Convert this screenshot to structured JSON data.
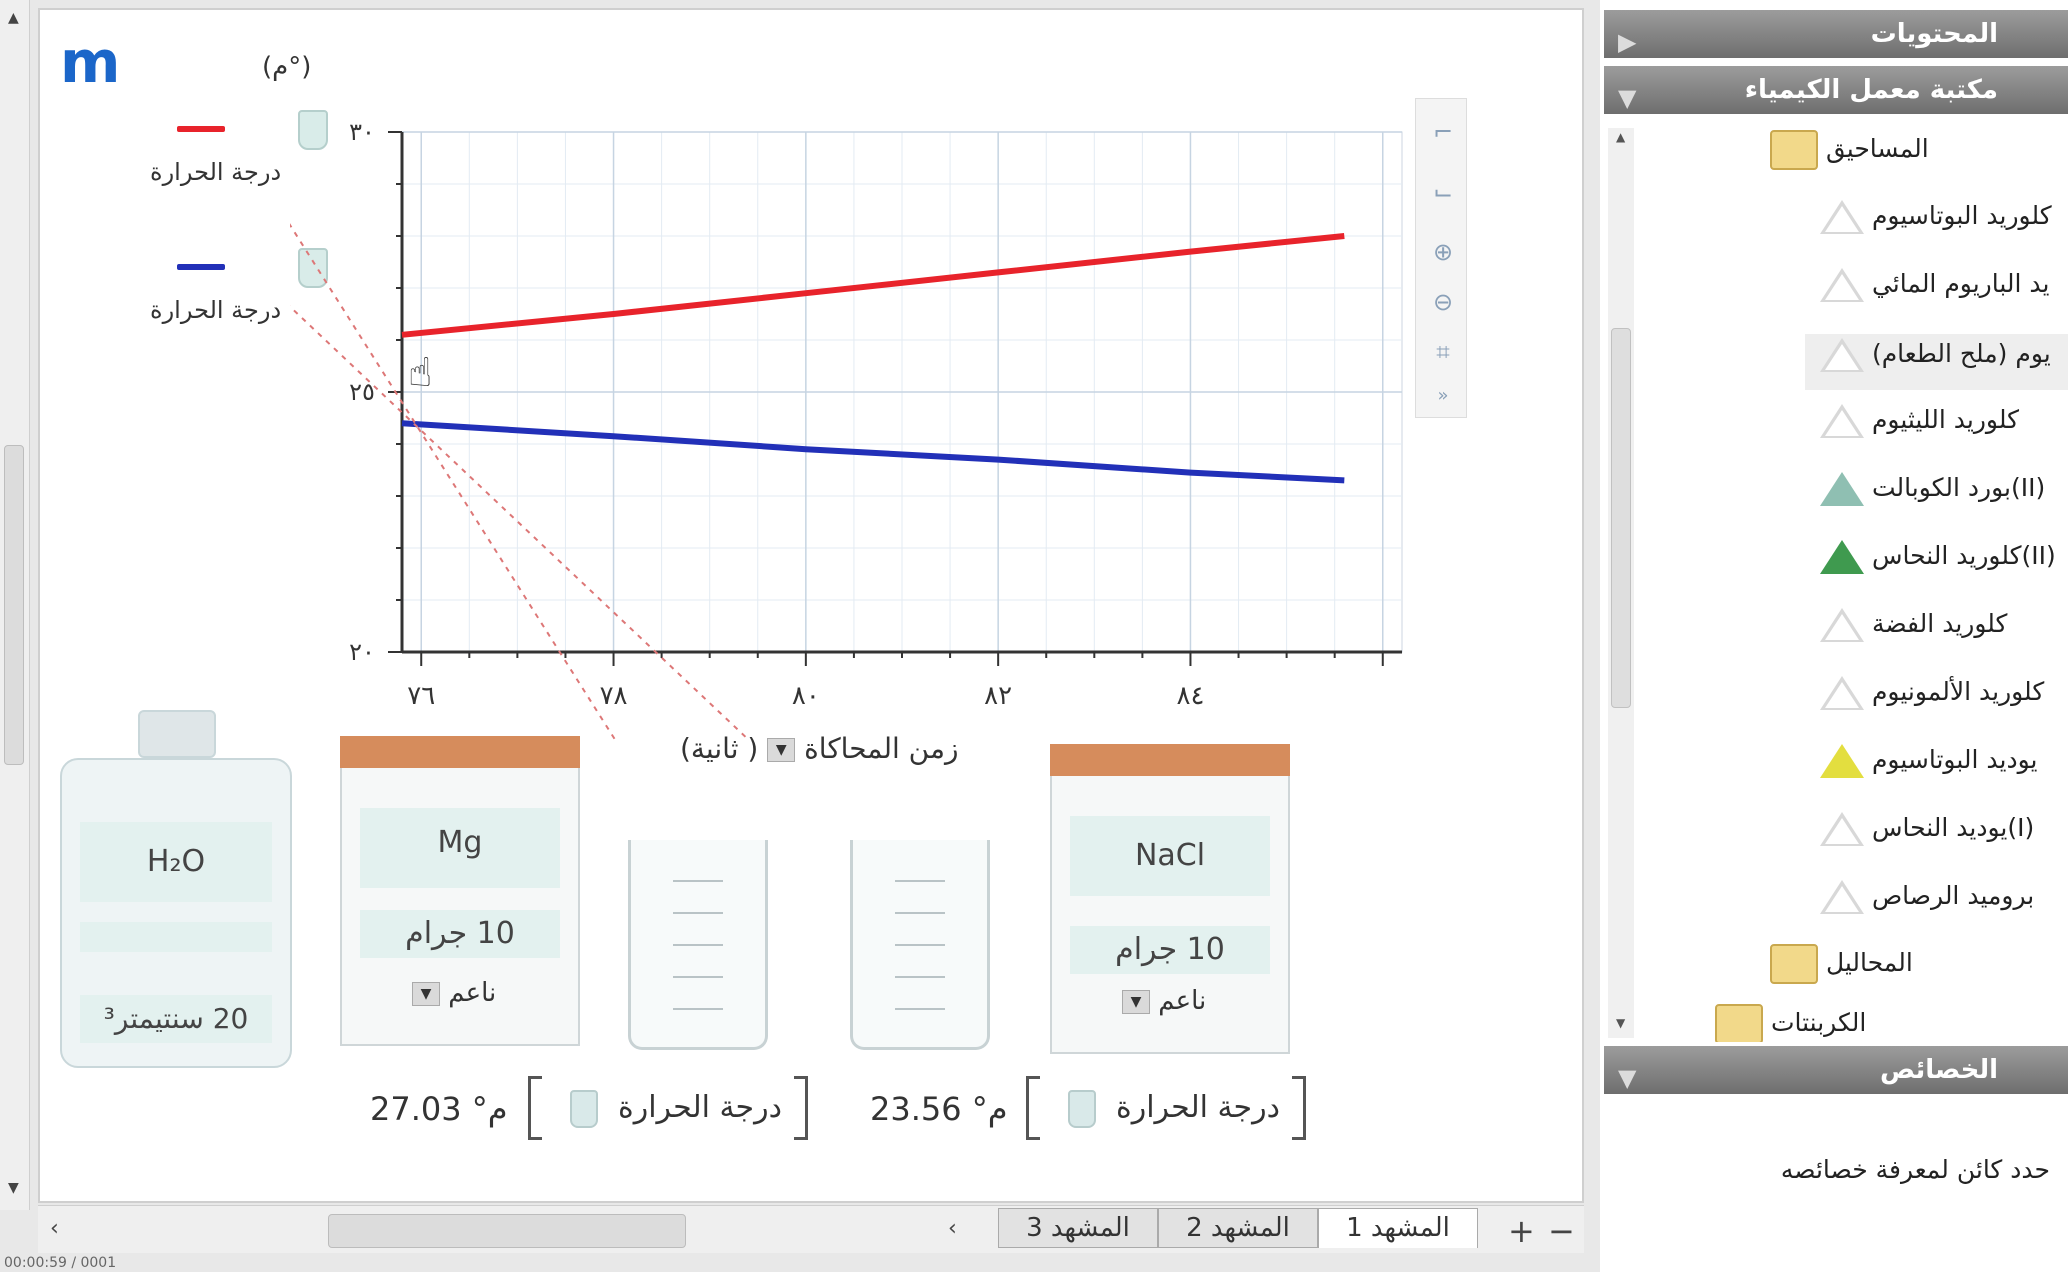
{
  "app": {
    "logo": "m"
  },
  "chart": {
    "unit_label": "(°م)"
  },
  "legend": [
    {
      "label": "درجة الحرارة",
      "color": "#e8232b",
      "probe_icon": "beaker-probe-icon"
    },
    {
      "label": "درجة الحرارة",
      "color": "#2230b8",
      "probe_icon": "beaker-probe-icon"
    }
  ],
  "chart_data": {
    "type": "line",
    "xlabel": "زمن المحاكاة",
    "x_unit": "( ثانية)",
    "xlim": [
      75.8,
      86.2
    ],
    "ylim": [
      20,
      30
    ],
    "x_ticks": [
      "٧٦",
      "٧٨",
      "٨٠",
      "٨٢",
      "٨٤"
    ],
    "y_ticks": [
      "٢٠",
      "٢٥",
      "٣٠"
    ],
    "series": [
      {
        "color": "#e8232b",
        "x": [
          75.8,
          78,
          80,
          82,
          84,
          85.6
        ],
        "y": [
          26.1,
          26.5,
          26.9,
          27.3,
          27.7,
          28.0
        ]
      },
      {
        "color": "#2230b8",
        "x": [
          75.8,
          78,
          80,
          82,
          84,
          85.6
        ],
        "y": [
          24.4,
          24.15,
          23.9,
          23.7,
          23.45,
          23.3
        ]
      }
    ],
    "grid": true
  },
  "sim_time": {
    "label": "زمن المحاكاة",
    "unit": "( ثانية)"
  },
  "containers": {
    "water": {
      "formula": "H₂O",
      "amount": "20 سنتيمتر³"
    },
    "mg": {
      "formula": "Mg",
      "amount": "10 جرام",
      "form": "ناعم"
    },
    "nacl": {
      "formula": "NaCl",
      "amount": "10 جرام",
      "form": "ناعم"
    }
  },
  "readouts": [
    {
      "label": "درجة الحرارة",
      "value": "27.03 °م"
    },
    {
      "label": "درجة الحرارة",
      "value": "23.56 °م"
    }
  ],
  "scenes": {
    "tabs": [
      "المشهد 1",
      "المشهد 2",
      "المشهد 3"
    ],
    "add": "+",
    "remove": "−",
    "scroll_right": "‹",
    "scroll_left": "‹"
  },
  "right_panel": {
    "contents_header": "المحتويات",
    "library_header": "مكتبة معمل الكيمياء",
    "tree": {
      "powders_folder": "المساحيق",
      "items": [
        "كلوريد البوتاسيوم",
        "يد الباريوم المائي",
        "يوم (ملح الطعام)",
        "كلوريد الليثيوم",
        "بورد الكوبالت(II)",
        "كلوريد النحاس(II)",
        "كلوريد الفضة",
        "كلوريد الألمونيوم",
        "يوديد البوتاسيوم",
        "يوديد النحاس(I)",
        "بروميد الرصاص"
      ],
      "solutions_folder": "المحاليل",
      "more_folder": "الكربنتات"
    },
    "properties_header": "الخصائص",
    "properties_hint": "حدد كائن لمعرفة خصائصه"
  },
  "status_line": "00:00:59 / 0001"
}
